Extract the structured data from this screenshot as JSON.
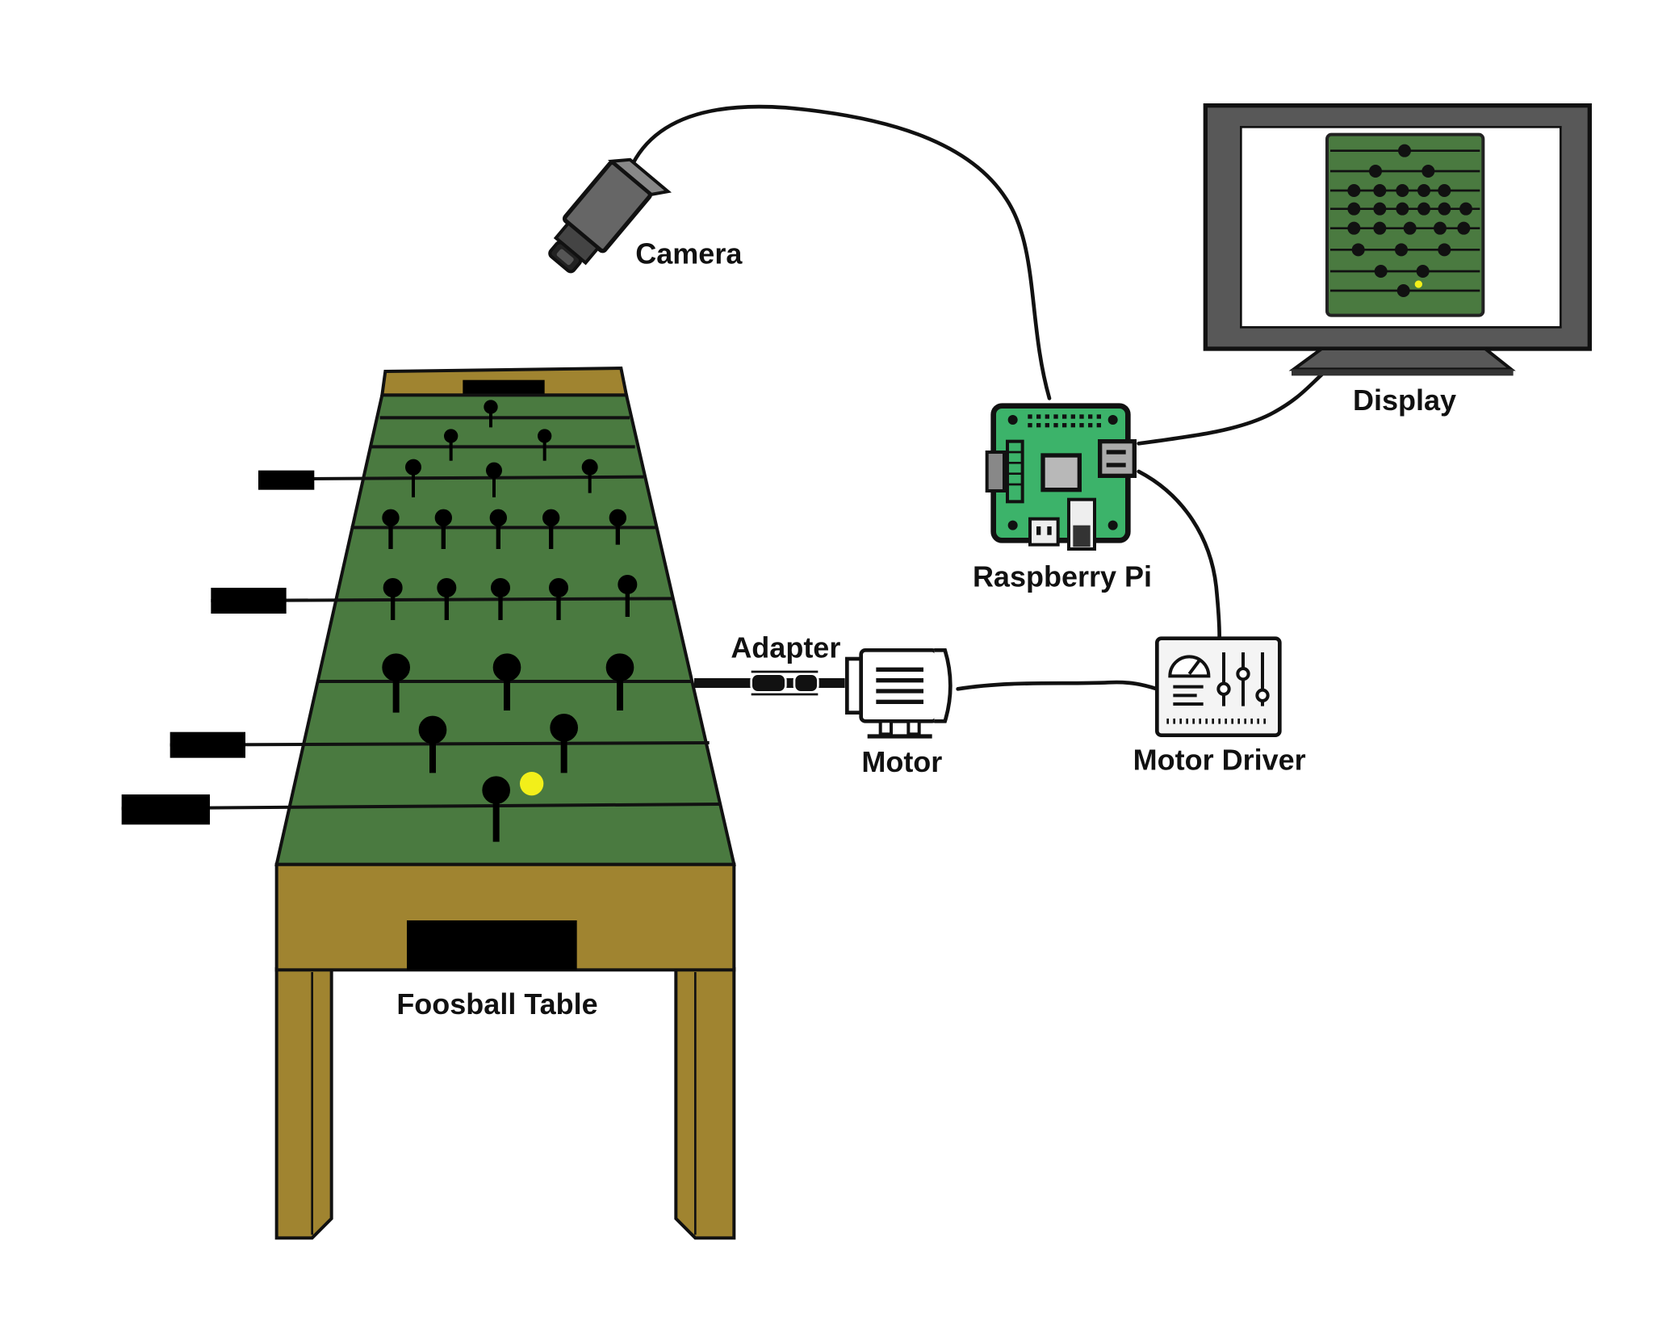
{
  "labels": {
    "camera": "Camera",
    "display": "Display",
    "raspberry_pi": "Raspberry Pi",
    "adapter": "Adapter",
    "motor": "Motor",
    "motor_driver": "Motor Driver",
    "foosball_table": "Foosball Table"
  },
  "colors": {
    "field_green": "#4a7a40",
    "wood": "#a08430",
    "pi_green": "#3cb36a",
    "ball": "#f2ef1a",
    "monitor_frame": "#555555",
    "ink": "#111111"
  },
  "icons": {
    "camera": "security-camera-icon",
    "display": "monitor-icon",
    "raspberry_pi": "circuit-board-icon",
    "motor": "electric-motor-icon",
    "motor_driver": "control-panel-icon",
    "adapter": "shaft-coupler-icon"
  }
}
